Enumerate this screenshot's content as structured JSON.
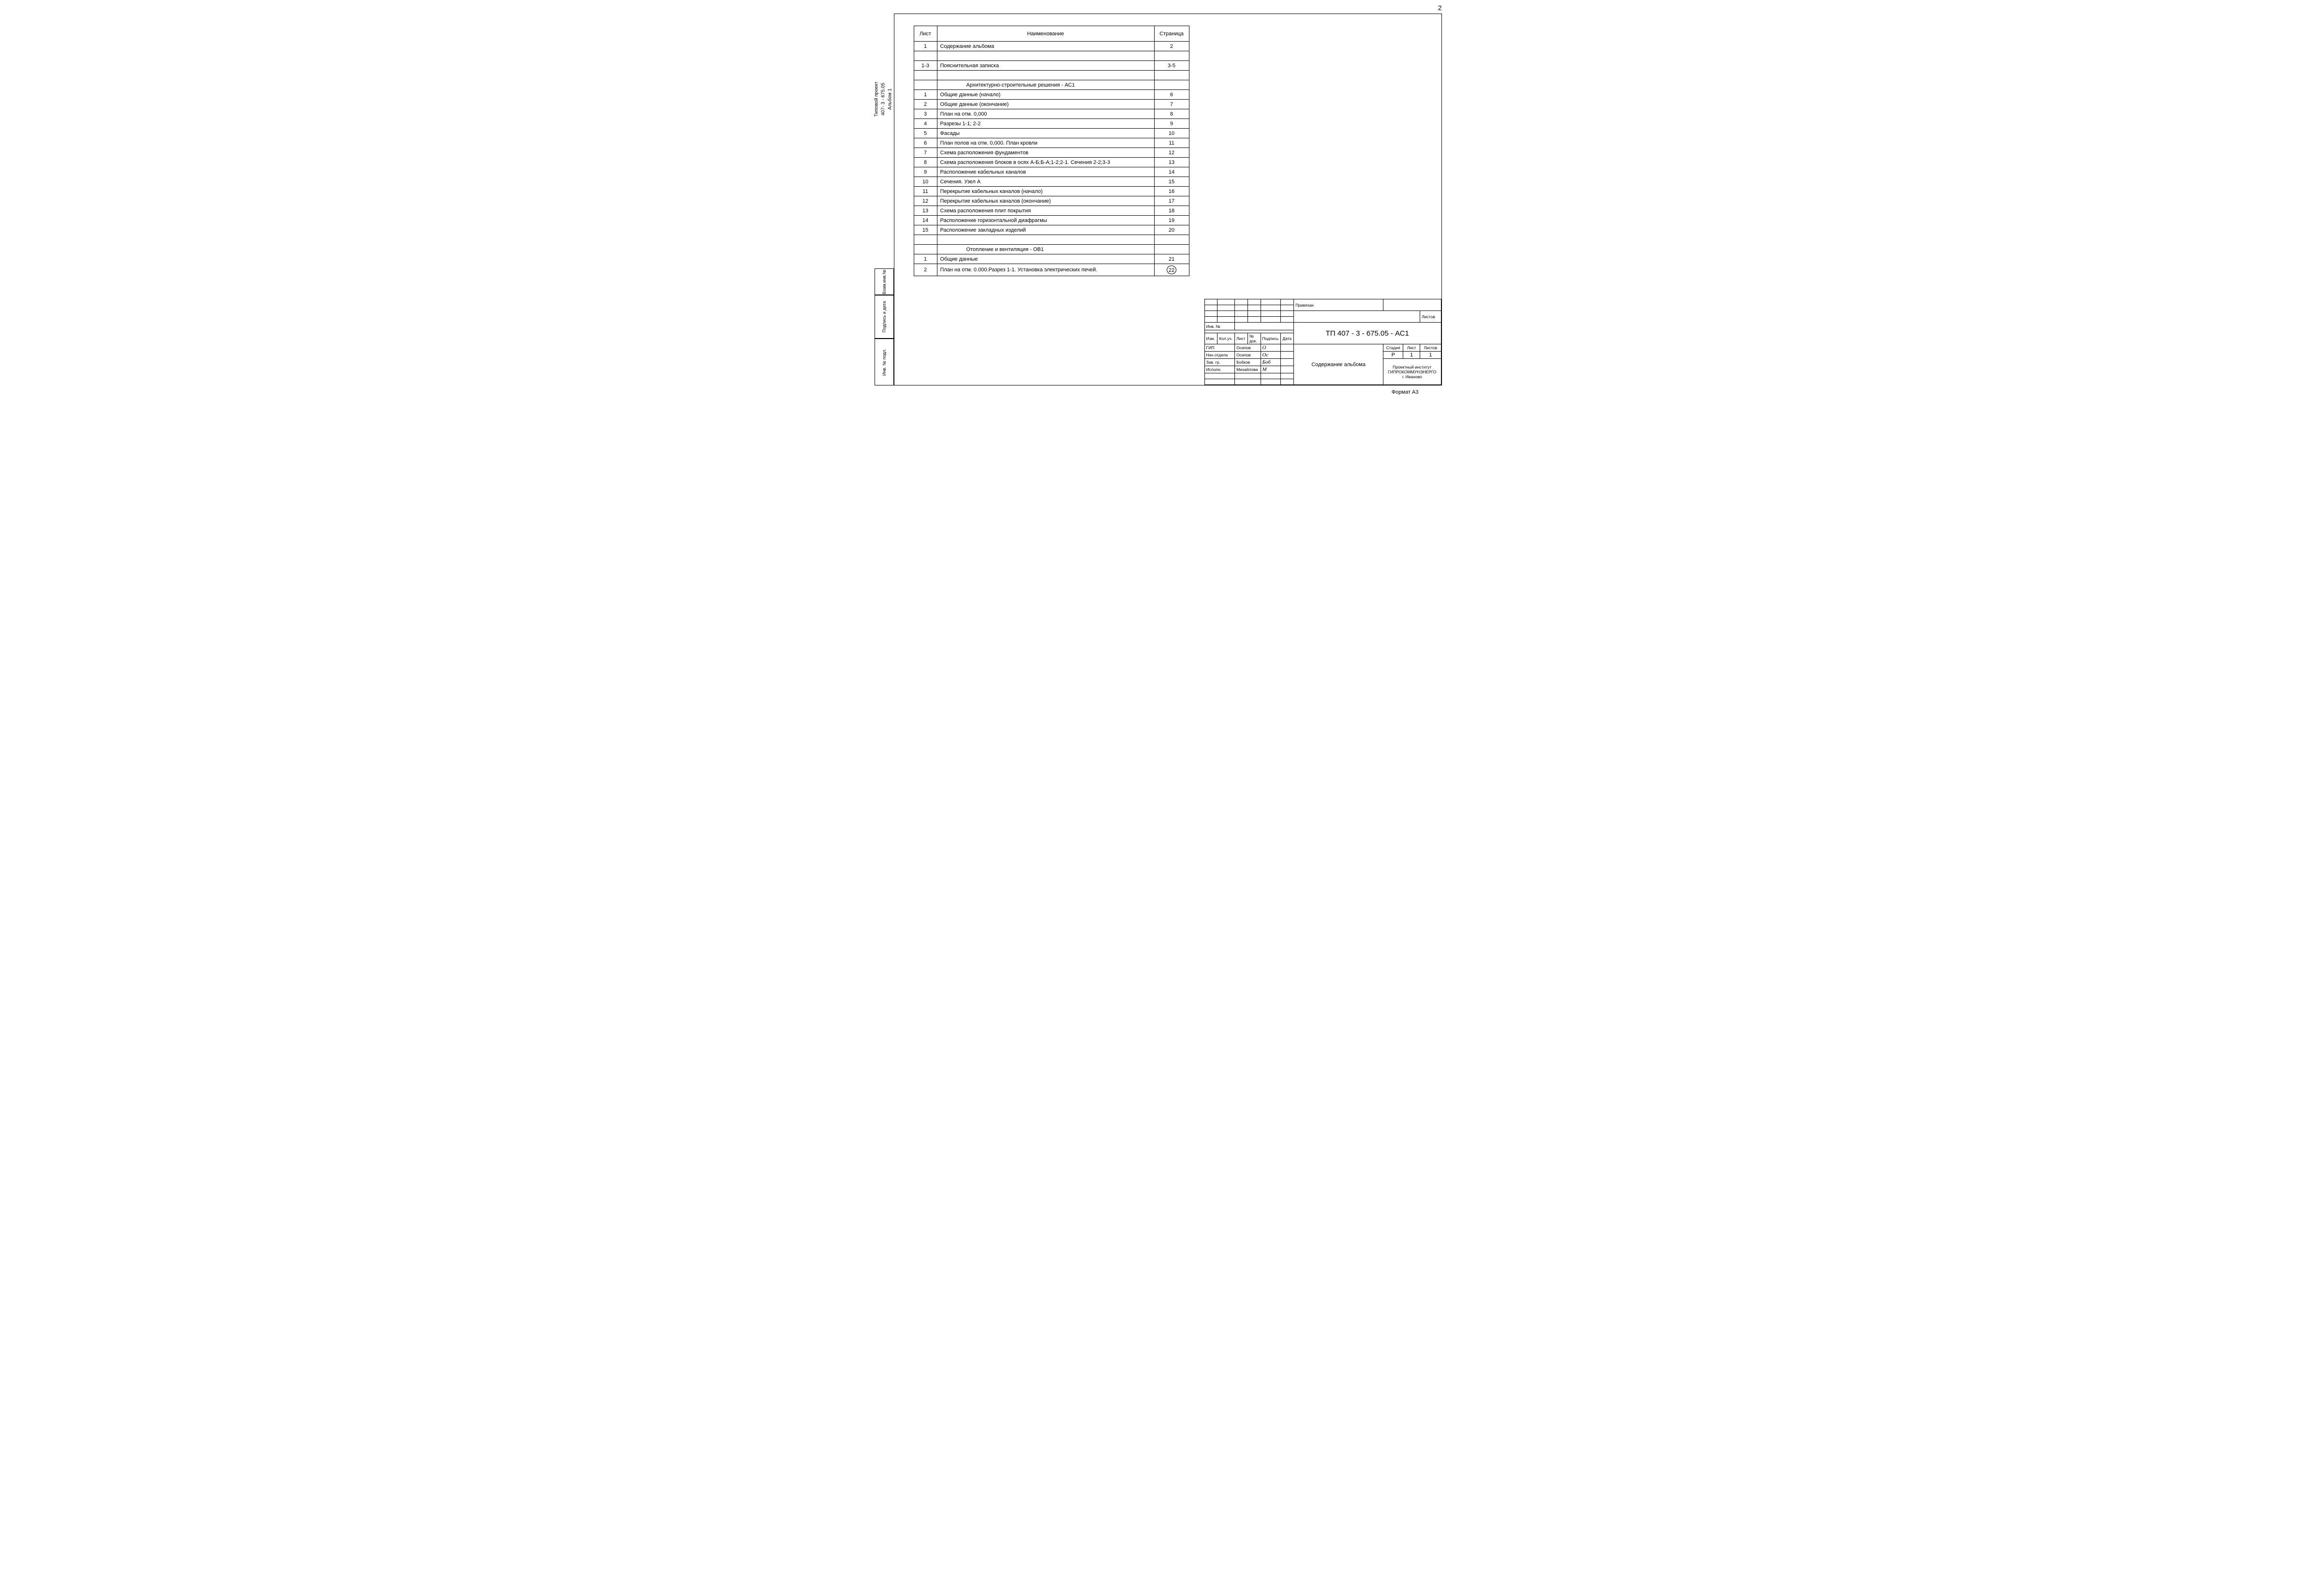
{
  "page_number": "2",
  "side_project": {
    "line1": "Типовой проект",
    "line2": "407- 3 - 675.05",
    "line3": "Альбом 1"
  },
  "side_labels": {
    "vzam": "Взам.инв.№",
    "podpis": "Подпись и дата",
    "invpodl": "Инв. № подл."
  },
  "toc": {
    "headers": {
      "sheet": "Лист",
      "name": "Наименование",
      "page": "Страница"
    },
    "rows": [
      {
        "sheet": "1",
        "name": "Содержание альбома",
        "page": "2"
      },
      {
        "sheet": "",
        "name": "",
        "page": ""
      },
      {
        "sheet": "1-3",
        "name": "Пояснительная записка",
        "page": "3-5"
      },
      {
        "sheet": "",
        "name": "",
        "page": ""
      },
      {
        "sheet": "",
        "name": "Архитектурно-строительные решения - АС1",
        "page": "",
        "section": true
      },
      {
        "sheet": "1",
        "name": "Общие данные (начало)",
        "page": "6"
      },
      {
        "sheet": "2",
        "name": "Общие данные (окончание)",
        "page": "7"
      },
      {
        "sheet": "3",
        "name": "План на отм. 0,000",
        "page": "8"
      },
      {
        "sheet": "4",
        "name": "Разрезы 1-1; 2-2",
        "page": "9"
      },
      {
        "sheet": "5",
        "name": "Фасады",
        "page": "10"
      },
      {
        "sheet": "6",
        "name": "План полов на отм. 0,000. План кровли",
        "page": "11"
      },
      {
        "sheet": "7",
        "name": "Схема расположения фундаментов",
        "page": "12"
      },
      {
        "sheet": "8",
        "name": "Схема расположения блоков в осях А-Б;Б-А;1-2;2-1. Сечения 2-2;3-3",
        "page": "13"
      },
      {
        "sheet": "9",
        "name": "Расположение кабельных каналов",
        "page": "14"
      },
      {
        "sheet": "10",
        "name": "Сечения. Узел А",
        "page": "15"
      },
      {
        "sheet": "11",
        "name": "Перекрытие кабельных каналов (начало)",
        "page": "16"
      },
      {
        "sheet": "12",
        "name": "Перекрытие кабельных каналов (окончание)",
        "page": "17"
      },
      {
        "sheet": "13",
        "name": "Схема расположения плит покрытия",
        "page": "18"
      },
      {
        "sheet": "14",
        "name": "Расположение горизонтальной диафрагмы",
        "page": "19"
      },
      {
        "sheet": "15",
        "name": "Расположение закладных изделий",
        "page": "20"
      },
      {
        "sheet": "",
        "name": "",
        "page": ""
      },
      {
        "sheet": "",
        "name": "Отопление и вентиляция - ОВ1",
        "page": "",
        "section": true
      },
      {
        "sheet": "1",
        "name": "Общие данные",
        "page": "21"
      },
      {
        "sheet": "2",
        "name": "План на отм. 0.000.Разрез 1-1. Установка электрических печей.",
        "page": "22",
        "circled": true
      }
    ]
  },
  "stamp": {
    "privjazan": "Привязан",
    "listov_top": "Листов",
    "inv_no": "Инв. №",
    "rev_headers": {
      "izm": "Изм.",
      "koluch": "Кол.уч.",
      "list": "Лист",
      "ndok": "№ док.",
      "podpis": "Подпись",
      "data": "Дата"
    },
    "doc_code": "ТП  407 - 3 - 675.05  -  АС1",
    "roles": [
      {
        "role": "ГИП",
        "name": "Осипов",
        "sig": "О"
      },
      {
        "role": "Нач.отдела",
        "name": "Осипов",
        "sig": "Ос"
      },
      {
        "role": "Зав. гр.",
        "name": "Бобков",
        "sig": "Боб"
      },
      {
        "role": "Исполн.",
        "name": "Михайлова",
        "sig": "М"
      }
    ],
    "title": "Содержание альбома",
    "stage_hdr": "Стадия",
    "sheet_hdr": "Лист",
    "sheets_hdr": "Листов",
    "stage": "Р",
    "sheet": "1",
    "sheets": "1",
    "org1": "Проектный институт",
    "org2": "ГИПРОКОММУНЭНЕРГО",
    "org3": "г. Иваново"
  },
  "format_label": "Формат А3"
}
